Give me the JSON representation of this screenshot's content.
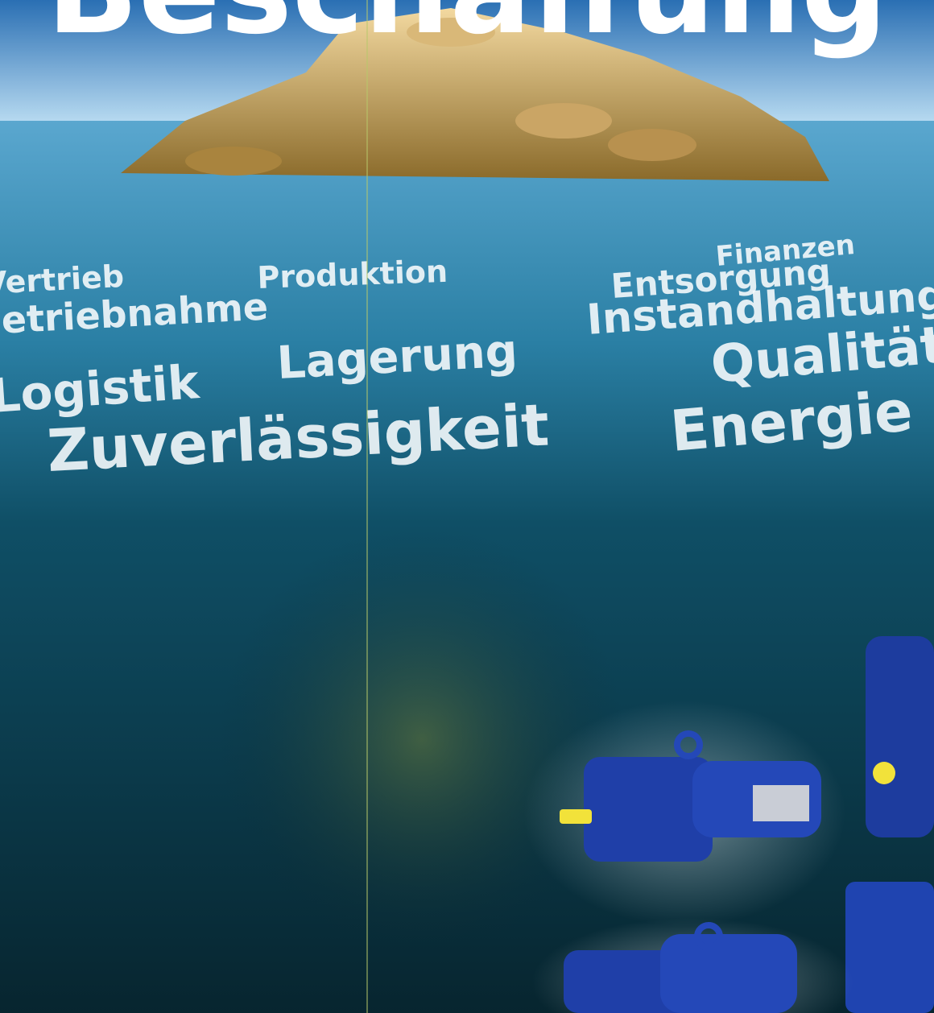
{
  "title": "Beschaffung",
  "words": [
    "Finanzen",
    "Vertrieb",
    "Produktion",
    "Entsorgung",
    "Inbetriebnahme",
    "Instandhaltung",
    "Lagerung",
    "Qualität",
    "Logistik",
    "Zuverlässigkeit",
    "Energie"
  ]
}
